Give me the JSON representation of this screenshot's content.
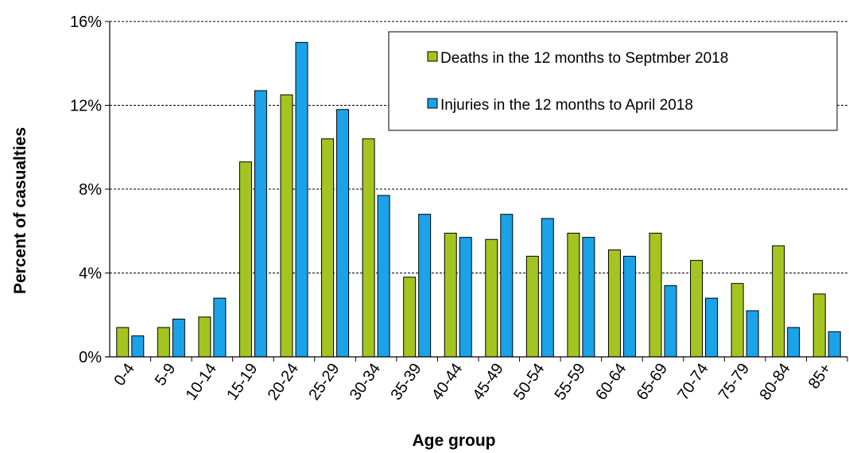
{
  "chart_data": {
    "type": "bar",
    "xlabel": "Age group",
    "ylabel": "Percent of casualties",
    "ylim": [
      0,
      16
    ],
    "yticks": [
      0,
      4,
      8,
      12,
      16
    ],
    "ytick_labels": [
      "0%",
      "4%",
      "8%",
      "12%",
      "16%"
    ],
    "grid": "horizontal dashed",
    "legend_position": "top-right",
    "categories": [
      "0-4",
      "5-9",
      "10-14",
      "15-19",
      "20-24",
      "25-29",
      "30-34",
      "35-39",
      "40-44",
      "45-49",
      "50-54",
      "55-59",
      "60-64",
      "65-69",
      "70-74",
      "75-79",
      "80-84",
      "85+"
    ],
    "series": [
      {
        "name": "Deaths in the 12 months to Septmber 2018",
        "color": "#a4c520",
        "values": [
          1.4,
          1.4,
          1.9,
          9.3,
          12.5,
          10.4,
          10.4,
          3.8,
          5.9,
          5.6,
          4.8,
          5.9,
          5.1,
          5.9,
          4.6,
          3.5,
          5.3,
          3.0
        ]
      },
      {
        "name": "Injuries in the 12 months to April 2018",
        "color": "#1aa3e8",
        "values": [
          1.0,
          1.8,
          2.8,
          12.7,
          15.0,
          11.8,
          7.7,
          6.8,
          5.7,
          6.8,
          6.6,
          5.7,
          4.8,
          3.4,
          2.8,
          2.2,
          1.4,
          1.2
        ]
      }
    ]
  }
}
